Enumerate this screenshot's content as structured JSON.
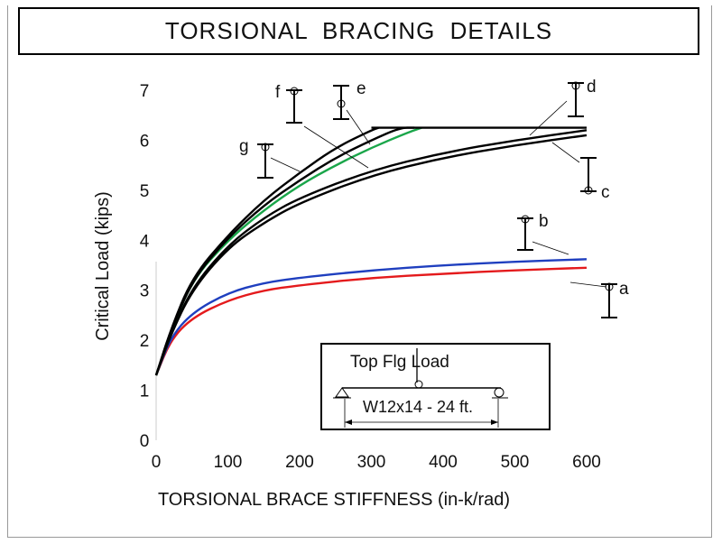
{
  "title": "TORSIONAL BRACING DETAILS",
  "inset": {
    "load_label": "Top Flg Load",
    "dimension_label": "W12x14 - 24 ft."
  },
  "chart_data": {
    "type": "line",
    "xlabel": "TORSIONAL BRACE STIFFNESS (in-k/rad)",
    "ylabel": "Critical Load (kips)",
    "xlim": [
      0,
      600
    ],
    "ylim": [
      0,
      7
    ],
    "xticks": [
      0,
      100,
      200,
      300,
      400,
      500,
      600
    ],
    "yticks": [
      0,
      1,
      2,
      3,
      4,
      5,
      6,
      7
    ],
    "colors": {
      "a": "#e41a1c",
      "b": "#1f3fbf",
      "c": "#000000",
      "d": "#000000",
      "e": "#000000",
      "f": "#000000",
      "g": "#1aa64a",
      "cap": "#000000"
    },
    "series": [
      {
        "name": "a",
        "x": [
          0,
          20,
          50,
          100,
          150,
          200,
          300,
          400,
          500,
          600
        ],
        "y": [
          1.3,
          2.0,
          2.45,
          2.8,
          3.0,
          3.1,
          3.25,
          3.33,
          3.4,
          3.45
        ]
      },
      {
        "name": "b",
        "x": [
          0,
          20,
          50,
          100,
          150,
          200,
          300,
          400,
          500,
          600
        ],
        "y": [
          1.3,
          2.05,
          2.55,
          2.95,
          3.15,
          3.25,
          3.4,
          3.5,
          3.57,
          3.62
        ]
      },
      {
        "name": "c",
        "x": [
          0,
          20,
          50,
          100,
          150,
          200,
          300,
          400,
          500,
          600
        ],
        "y": [
          1.3,
          2.1,
          3.0,
          3.85,
          4.35,
          4.75,
          5.3,
          5.65,
          5.9,
          6.1
        ]
      },
      {
        "name": "d",
        "x": [
          0,
          20,
          50,
          100,
          150,
          200,
          300,
          400,
          500,
          600
        ],
        "y": [
          1.3,
          2.1,
          3.05,
          3.9,
          4.45,
          4.85,
          5.4,
          5.75,
          6.0,
          6.2
        ]
      },
      {
        "name": "g",
        "x": [
          0,
          20,
          50,
          100,
          150,
          200,
          250,
          300,
          350,
          370
        ],
        "y": [
          1.3,
          2.15,
          3.2,
          4.0,
          4.6,
          5.1,
          5.5,
          5.85,
          6.15,
          6.25
        ]
      },
      {
        "name": "e",
        "x": [
          0,
          20,
          50,
          100,
          150,
          200,
          250,
          300,
          340,
          360
        ],
        "y": [
          1.3,
          2.15,
          3.2,
          4.05,
          4.7,
          5.2,
          5.65,
          6.0,
          6.25,
          6.25
        ]
      },
      {
        "name": "f",
        "x": [
          0,
          20,
          50,
          100,
          150,
          200,
          250,
          300,
          310
        ],
        "y": [
          1.3,
          2.2,
          3.25,
          4.1,
          4.8,
          5.35,
          5.85,
          6.2,
          6.25
        ]
      },
      {
        "name": "cap",
        "x": [
          300,
          600
        ],
        "y": [
          6.25,
          6.25
        ]
      }
    ],
    "curve_labels": [
      "a",
      "b",
      "c",
      "d",
      "e",
      "f",
      "g"
    ]
  }
}
